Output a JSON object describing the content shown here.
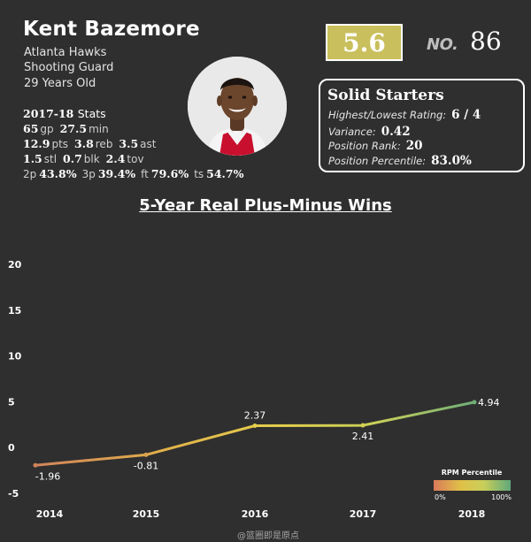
{
  "player": {
    "name": "Kent Bazemore",
    "team": "Atlanta Hawks",
    "position": "Shooting Guard",
    "age": "29 Years Old"
  },
  "stats": {
    "season": "2017-18",
    "season_label": "Stats",
    "gp": "65",
    "gp_label": "gp",
    "min": "27.5",
    "min_label": "min",
    "pts": "12.9",
    "pts_label": "pts",
    "reb": "3.8",
    "reb_label": "reb",
    "ast": "3.5",
    "ast_label": "ast",
    "stl": "1.5",
    "stl_label": "stl",
    "blk": "0.7",
    "blk_label": "blk",
    "tov": "2.4",
    "tov_label": "tov",
    "p2_label": "2p",
    "p2": "43.8%",
    "p3_label": "3p",
    "p3": "39.4%",
    "ft_label": "ft",
    "ft": "79.6%",
    "ts_label": "ts",
    "ts": "54.7%"
  },
  "rating": {
    "value": "5.6",
    "color": "#c9bf5c"
  },
  "rank": {
    "label": "NO.",
    "number": "86"
  },
  "tier": {
    "title": "Solid Starters",
    "rows": [
      {
        "label": "Highest/Lowest Rating:",
        "value": "6 / 4"
      },
      {
        "label": "Variance:",
        "value": "0.42"
      },
      {
        "label": "Position Rank:",
        "value": "20"
      },
      {
        "label": "Position Percentile:",
        "value": "83.0%"
      }
    ]
  },
  "chart_data": {
    "type": "line",
    "title": "5-Year Real Plus-Minus Wins",
    "x": [
      "2014",
      "2015",
      "2016",
      "2017",
      "2018"
    ],
    "series": [
      {
        "values": [
          -1.96,
          -0.81,
          2.37,
          2.41,
          4.94
        ]
      }
    ],
    "data_labels": [
      "-1.96",
      "-0.81",
      "2.37",
      "2.41",
      "4.94"
    ],
    "ylim": [
      -6,
      23
    ],
    "yticks": [
      -5,
      0,
      5,
      10,
      15,
      20
    ],
    "grid": false,
    "legend": {
      "title": "RPM Percentile",
      "min_label": "0%",
      "max_label": "100%",
      "colors": [
        "#d97a5a",
        "#e0c048",
        "#c9cf5a",
        "#5fa87a"
      ],
      "placement": "bottom-right"
    }
  },
  "watermark": "@篮圈即是原点"
}
